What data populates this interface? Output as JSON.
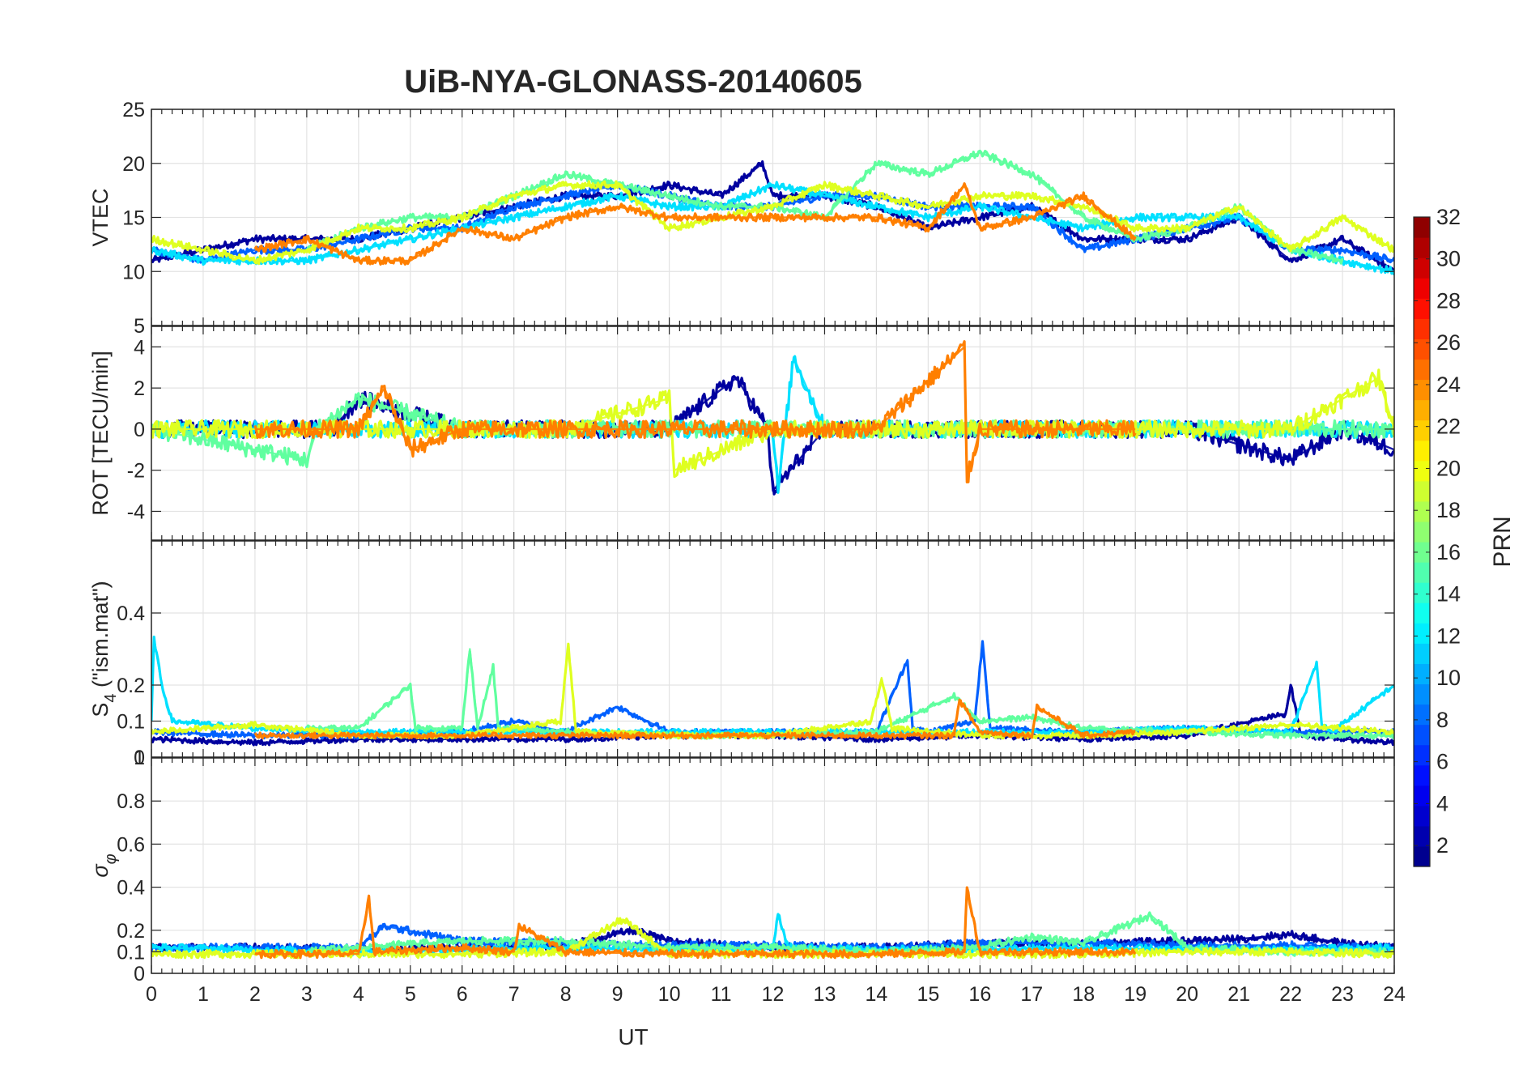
{
  "chart_data": {
    "type": "line",
    "title": "UiB-NYA-GLONASS-20140605",
    "xlabel": "UT",
    "xlim": [
      0,
      24
    ],
    "xticks": [
      "0",
      "1",
      "2",
      "3",
      "4",
      "5",
      "6",
      "7",
      "8",
      "9",
      "10",
      "11",
      "12",
      "13",
      "14",
      "15",
      "16",
      "17",
      "18",
      "19",
      "20",
      "21",
      "22",
      "23",
      "24"
    ],
    "grid": true,
    "colorbar": {
      "label": "PRN",
      "colormap": "jet",
      "range": [
        1,
        32
      ],
      "ticks": [
        "2",
        "4",
        "6",
        "8",
        "10",
        "12",
        "14",
        "16",
        "18",
        "20",
        "22",
        "24",
        "26",
        "28",
        "30",
        "32"
      ]
    },
    "panels": [
      {
        "ylabel": "VTEC",
        "ylim": [
          5,
          25
        ],
        "yticks": [
          "5",
          "10",
          "15",
          "20",
          "25"
        ],
        "series": [
          {
            "color": "#00009f",
            "x": [
              0,
              1,
              2,
              3,
              4,
              5,
              6,
              7,
              8,
              9,
              10,
              11,
              11.8,
              12,
              13,
              14,
              15,
              16,
              17,
              18,
              19,
              20,
              21,
              22,
              23,
              24
            ],
            "y": [
              11,
              12,
              13,
              13,
              13,
              14,
              15,
              16,
              17,
              17,
              18,
              17,
              20,
              17,
              17,
              16,
              14,
              15,
              16,
              13,
              13,
              13,
              15,
              11,
              13,
              10
            ]
          },
          {
            "color": "#0060ff",
            "x": [
              0,
              1,
              2,
              3,
              4,
              5,
              6,
              7,
              8,
              9,
              10,
              11,
              12,
              13,
              14,
              15,
              16,
              17,
              18,
              19,
              20,
              21,
              22,
              23,
              24
            ],
            "y": [
              12,
              11,
              12,
              12,
              13,
              14,
              14,
              16,
              17,
              18,
              17,
              16,
              16,
              17,
              17,
              16,
              16,
              16,
              12,
              13,
              14,
              15,
              12,
              12,
              11
            ]
          },
          {
            "color": "#00e0ff",
            "x": [
              0,
              1,
              2,
              3,
              4,
              5,
              6,
              7,
              8,
              9,
              10,
              11,
              12,
              13,
              14,
              15,
              16,
              17,
              18,
              19,
              20,
              21,
              22,
              23,
              24
            ],
            "y": [
              12,
              11,
              11,
              11,
              12,
              13,
              14,
              15,
              16,
              17,
              16,
              16,
              18,
              17,
              16,
              15,
              16,
              15,
              14,
              15,
              15,
              15,
              12,
              11,
              10
            ]
          },
          {
            "color": "#60ff9f",
            "x": [
              3,
              4,
              5,
              6,
              7,
              8,
              9,
              10,
              11,
              12,
              13,
              14,
              15,
              16,
              17,
              18,
              19,
              20,
              21,
              22,
              23
            ],
            "y": [
              12,
              14,
              15,
              15,
              17,
              19,
              18,
              17,
              16,
              16,
              15,
              20,
              19,
              21,
              19,
              15,
              13,
              14,
              16,
              12,
              11
            ]
          },
          {
            "color": "#dfff20",
            "x": [
              0,
              1,
              2,
              3,
              4,
              5,
              6,
              7,
              8,
              9,
              10,
              11,
              12,
              13,
              14,
              15,
              16,
              17,
              18,
              19,
              20,
              21,
              22,
              23,
              24
            ],
            "y": [
              13,
              12,
              11,
              12,
              14,
              14,
              15,
              17,
              18,
              18,
              14,
              15,
              16,
              18,
              17,
              16,
              17,
              17,
              16,
              14,
              14,
              16,
              12,
              15,
              12
            ]
          },
          {
            "color": "#ff7f00",
            "x": [
              2,
              3,
              4,
              5,
              6,
              7,
              8,
              9,
              10,
              11,
              12,
              13,
              14,
              15,
              15.7,
              16,
              17,
              18,
              19
            ],
            "y": [
              12,
              13,
              11,
              11,
              14,
              13,
              15,
              16,
              15,
              15,
              15,
              15,
              15,
              14,
              18,
              14,
              15,
              17,
              13
            ]
          }
        ]
      },
      {
        "ylabel": "ROT [TECU/min]",
        "ylim": [
          -5.4,
          5
        ],
        "yticks": [
          "-4",
          "-2",
          "0",
          "2",
          "4"
        ],
        "series": [
          {
            "color": "#00009f",
            "x": [
              0,
              2,
              3.5,
              4,
              6,
              8,
              10,
              11.3,
              11.9,
              12,
              13,
              14,
              16,
              18,
              20,
              22,
              23,
              24
            ],
            "y": [
              0,
              0,
              0,
              1.5,
              0,
              0,
              0,
              2.5,
              0,
              -3,
              0,
              0,
              0,
              0,
              0,
              -1.5,
              0,
              -1
            ]
          },
          {
            "color": "#00e0ff",
            "x": [
              0,
              2,
              4,
              6,
              8,
              10,
              12,
              12.1,
              12.4,
              13,
              16,
              18,
              20,
              22,
              24
            ],
            "y": [
              0,
              0,
              0,
              0,
              0,
              0,
              0,
              -3,
              3.5,
              0,
              0,
              0,
              0,
              0,
              0
            ]
          },
          {
            "color": "#60ff9f",
            "x": [
              0,
              3,
              3.2,
              4,
              6,
              8,
              10,
              12,
              14,
              16,
              18,
              20,
              22,
              24
            ],
            "y": [
              0,
              -1.5,
              0,
              1.5,
              0,
              0,
              0,
              0,
              0,
              0,
              0,
              0,
              0,
              0
            ]
          },
          {
            "color": "#dfff20",
            "x": [
              0,
              2,
              4,
              6,
              8,
              10,
              10.1,
              12,
              14,
              16,
              18,
              20,
              22,
              23.7,
              24
            ],
            "y": [
              0,
              0,
              0,
              0,
              0,
              1.5,
              -2,
              0,
              0,
              0,
              0,
              0,
              0,
              2.5,
              0
            ]
          },
          {
            "color": "#ff7f00",
            "x": [
              2,
              4,
              4.5,
              5,
              6,
              8,
              10,
              12,
              14,
              15.7,
              15.75,
              16,
              18,
              19
            ],
            "y": [
              0,
              0,
              2,
              -1,
              0,
              0,
              0,
              0,
              0,
              4,
              -2.5,
              0,
              0,
              0
            ]
          }
        ]
      },
      {
        "ylabel": "S_4 (\"ism.mat\")",
        "ylim": [
          0,
          0.6
        ],
        "yticks": [
          "0",
          "0.1",
          "0.2",
          "0.4"
        ],
        "extra_tick": "1",
        "series": [
          {
            "color": "#00009f",
            "x": [
              0,
              2,
              4,
              6,
              8,
              10,
              12,
              14,
              16,
              18,
              20,
              21.9,
              22,
              22.2,
              24
            ],
            "y": [
              0.05,
              0.04,
              0.05,
              0.05,
              0.05,
              0.06,
              0.06,
              0.05,
              0.06,
              0.05,
              0.06,
              0.12,
              0.2,
              0.06,
              0.04
            ]
          },
          {
            "color": "#0060ff",
            "x": [
              0,
              2,
              4,
              6,
              7,
              8,
              9,
              10,
              12,
              14,
              14.6,
              14.7,
              15,
              15.9,
              16.05,
              16.2,
              18,
              20,
              22,
              24
            ],
            "y": [
              0.07,
              0.06,
              0.06,
              0.07,
              0.1,
              0.07,
              0.14,
              0.07,
              0.07,
              0.07,
              0.27,
              0.08,
              0.07,
              0.1,
              0.32,
              0.08,
              0.07,
              0.08,
              0.07,
              0.07
            ]
          },
          {
            "color": "#00e0ff",
            "x": [
              0,
              0.05,
              0.2,
              0.4,
              2,
              4,
              6,
              8,
              10,
              12,
              14,
              16,
              18,
              20,
              22,
              22.5,
              22.6,
              22.8,
              24
            ],
            "y": [
              0.1,
              0.33,
              0.2,
              0.1,
              0.08,
              0.07,
              0.07,
              0.07,
              0.07,
              0.07,
              0.07,
              0.07,
              0.07,
              0.08,
              0.07,
              0.26,
              0.09,
              0.07,
              0.2
            ]
          },
          {
            "color": "#60ff9f",
            "x": [
              3,
              4,
              5,
              5.1,
              6,
              6.15,
              6.3,
              6.6,
              6.7,
              8,
              10,
              12,
              14,
              15.5,
              16,
              17,
              18,
              20,
              22,
              24
            ],
            "y": [
              0.08,
              0.08,
              0.2,
              0.08,
              0.08,
              0.3,
              0.08,
              0.25,
              0.08,
              0.07,
              0.06,
              0.06,
              0.07,
              0.17,
              0.1,
              0.11,
              0.08,
              0.07,
              0.06,
              0.06
            ]
          },
          {
            "color": "#dfff20",
            "x": [
              0,
              2,
              4,
              6,
              7.9,
              8.05,
              8.2,
              10,
              12,
              13.9,
              14.1,
              14.3,
              16,
              18,
              20,
              22,
              24
            ],
            "y": [
              0.07,
              0.09,
              0.06,
              0.06,
              0.1,
              0.31,
              0.07,
              0.06,
              0.06,
              0.1,
              0.22,
              0.08,
              0.06,
              0.06,
              0.07,
              0.09,
              0.07
            ]
          },
          {
            "color": "#ff7f00",
            "x": [
              2,
              4,
              6,
              8,
              10,
              12,
              14,
              15.5,
              15.6,
              16,
              17,
              17.1,
              18,
              19
            ],
            "y": [
              0.06,
              0.06,
              0.06,
              0.06,
              0.06,
              0.06,
              0.06,
              0.06,
              0.16,
              0.07,
              0.06,
              0.14,
              0.06,
              0.07
            ]
          }
        ]
      },
      {
        "ylabel": "σ_φ",
        "ylim": [
          0,
          1
        ],
        "yticks": [
          "0",
          "0.1",
          "0.2",
          "0.4",
          "0.6",
          "0.8"
        ],
        "series": [
          {
            "color": "#00009f",
            "x": [
              0,
              2,
              4,
              6,
              8,
              9.3,
              10,
              12,
              14,
              16,
              18,
              20,
              21,
              22,
              23,
              24
            ],
            "y": [
              0.12,
              0.12,
              0.11,
              0.12,
              0.13,
              0.2,
              0.15,
              0.12,
              0.12,
              0.14,
              0.14,
              0.15,
              0.16,
              0.18,
              0.14,
              0.12
            ]
          },
          {
            "color": "#0060ff",
            "x": [
              0,
              2,
              4,
              4.5,
              6,
              8,
              10,
              12,
              14,
              16,
              18,
              20,
              22,
              24
            ],
            "y": [
              0.12,
              0.12,
              0.12,
              0.22,
              0.15,
              0.14,
              0.13,
              0.13,
              0.12,
              0.14,
              0.14,
              0.13,
              0.13,
              0.12
            ]
          },
          {
            "color": "#00e0ff",
            "x": [
              0,
              2,
              4,
              6,
              8,
              10,
              12,
              12.1,
              12.3,
              14,
              16,
              18,
              20,
              22,
              24
            ],
            "y": [
              0.12,
              0.11,
              0.1,
              0.11,
              0.12,
              0.11,
              0.12,
              0.27,
              0.12,
              0.11,
              0.11,
              0.12,
              0.11,
              0.11,
              0.12
            ]
          },
          {
            "color": "#60ff9f",
            "x": [
              3,
              4,
              6,
              8,
              10,
              12,
              14,
              16,
              17,
              18,
              19.3,
              20,
              22,
              24
            ],
            "y": [
              0.1,
              0.12,
              0.15,
              0.15,
              0.12,
              0.12,
              0.1,
              0.12,
              0.17,
              0.14,
              0.27,
              0.12,
              0.1,
              0.1
            ]
          },
          {
            "color": "#dfff20",
            "x": [
              0,
              2,
              4,
              6,
              8,
              9.1,
              10,
              12,
              14,
              16,
              18,
              20,
              22,
              24
            ],
            "y": [
              0.09,
              0.09,
              0.09,
              0.09,
              0.1,
              0.25,
              0.09,
              0.09,
              0.09,
              0.09,
              0.09,
              0.1,
              0.1,
              0.09
            ]
          },
          {
            "color": "#ff7f00",
            "x": [
              2,
              4,
              4.2,
              4.3,
              6,
              7,
              7.1,
              8,
              10,
              12,
              14,
              15.7,
              15.75,
              16,
              18,
              19
            ],
            "y": [
              0.09,
              0.09,
              0.35,
              0.1,
              0.12,
              0.1,
              0.22,
              0.1,
              0.09,
              0.09,
              0.09,
              0.1,
              0.4,
              0.1,
              0.1,
              0.1
            ]
          }
        ]
      }
    ]
  }
}
